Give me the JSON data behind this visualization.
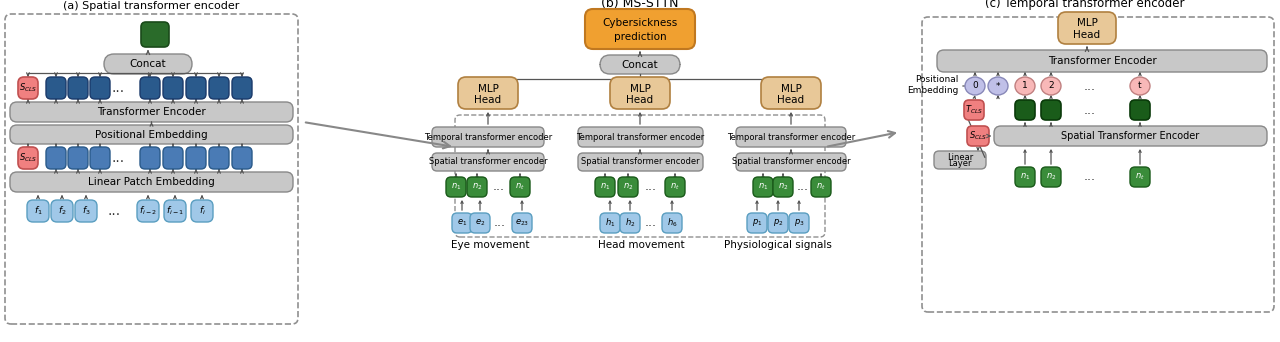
{
  "title_a": "(a) Spatial transformer encoder",
  "title_b": "(b) MS-STTN",
  "title_c": "(c) Temporal transformer encoder",
  "col_green_dark": "#2A6B2A",
  "col_green_med": "#3A8C3A",
  "col_blue_dark": "#2A5A8C",
  "col_blue_med": "#4A7BB5",
  "col_blue_light": "#A0C8E8",
  "col_pink": "#F08080",
  "col_pink_light": "#F8B8B8",
  "col_lavender": "#C0C0E8",
  "col_orange": "#F0A030",
  "col_tan": "#D4A870",
  "col_tan_light": "#E8C898",
  "col_gray": "#C8C8C8",
  "col_gray_dark": "#A0A0A0",
  "col_white": "#FFFFFF"
}
